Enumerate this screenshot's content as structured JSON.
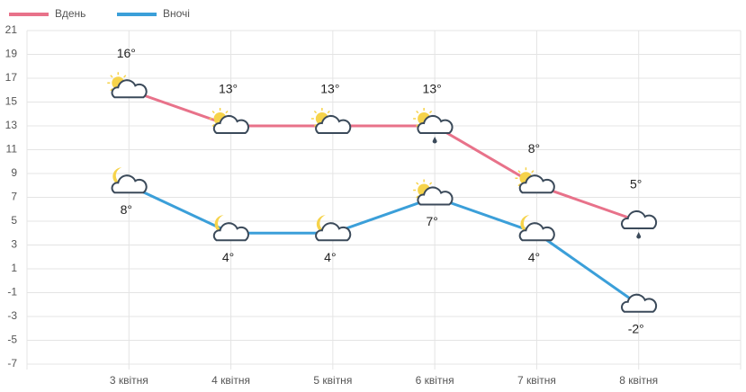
{
  "chart_data": {
    "type": "line",
    "categories": [
      null,
      "3 квітня",
      "4 квітня",
      "5 квітня",
      "6 квітня",
      "7 квітня",
      "8 квітня",
      null
    ],
    "series": [
      {
        "name": "Вдень",
        "color": "#e8728a",
        "values": [
          null,
          16,
          13,
          13,
          13,
          8,
          5,
          null
        ],
        "value_labels": [
          null,
          "16°",
          "13°",
          "13°",
          "13°",
          "8°",
          "5°",
          null
        ]
      },
      {
        "name": "Вночі",
        "color": "#3b9fd9",
        "values": [
          null,
          8,
          4,
          4,
          7,
          4,
          -2,
          null
        ],
        "value_labels": [
          null,
          "8°",
          "4°",
          "4°",
          "7°",
          "4°",
          "-2°",
          null
        ]
      }
    ],
    "ylim": [
      -7,
      21
    ],
    "yticks": [
      -7,
      -5,
      -3,
      -1,
      1,
      3,
      5,
      7,
      9,
      11,
      13,
      15,
      17,
      19,
      21
    ],
    "grid": true,
    "legend": "top-left"
  }
}
